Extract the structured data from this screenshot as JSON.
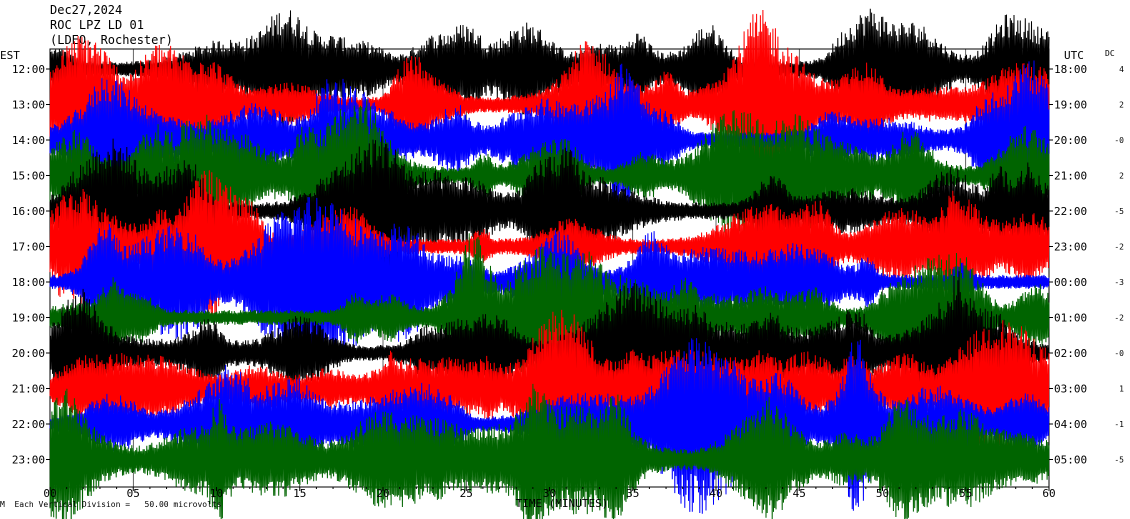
{
  "header": {
    "date": "Dec27,2024",
    "station": "ROC LPZ LD 01",
    "network": "(LDEO, Rochester)"
  },
  "left_axis_label": "EST",
  "right_axis_label": "UTC",
  "dc_label": "DC",
  "footer_note": "Each Vertical Division =   50.00 microvolts",
  "footer_mark": "M",
  "chart_data": {
    "type": "line",
    "xlabel": "TIME (MINUTES)",
    "xlim": [
      0,
      60
    ],
    "x_ticks": [
      "00",
      "05",
      "10",
      "15",
      "20",
      "25",
      "30",
      "35",
      "40",
      "45",
      "50",
      "55",
      "60"
    ],
    "trace_colors": [
      "#000000",
      "#ff0000",
      "#0000ff",
      "#006400"
    ],
    "series": [
      {
        "left_time": "12:00",
        "right_time": "18:00",
        "dc": "4",
        "color": "#000000",
        "amplitude": 0.6
      },
      {
        "left_time": "13:00",
        "right_time": "19:00",
        "dc": "2",
        "color": "#ff0000",
        "amplitude": 0.62
      },
      {
        "left_time": "14:00",
        "right_time": "20:00",
        "dc": "-0",
        "color": "#0000ff",
        "amplitude": 0.6
      },
      {
        "left_time": "15:00",
        "right_time": "21:00",
        "dc": "2",
        "color": "#006400",
        "amplitude": 0.66
      },
      {
        "left_time": "16:00",
        "right_time": "22:00",
        "dc": "-5",
        "color": "#000000",
        "amplitude": 0.68
      },
      {
        "left_time": "17:00",
        "right_time": "23:00",
        "dc": "-2",
        "color": "#ff0000",
        "amplitude": 0.62
      },
      {
        "left_time": "18:00",
        "right_time": "00:00",
        "dc": "-3",
        "color": "#0000ff",
        "amplitude": 0.58
      },
      {
        "left_time": "19:00",
        "right_time": "01:00",
        "dc": "-2",
        "color": "#006400",
        "amplitude": 0.6
      },
      {
        "left_time": "20:00",
        "right_time": "02:00",
        "dc": "-0",
        "color": "#000000",
        "amplitude": 0.56
      },
      {
        "left_time": "21:00",
        "right_time": "03:00",
        "dc": "1",
        "color": "#ff0000",
        "amplitude": 0.62
      },
      {
        "left_time": "22:00",
        "right_time": "04:00",
        "dc": "-1",
        "color": "#0000ff",
        "amplitude": 0.58
      },
      {
        "left_time": "23:00",
        "right_time": "05:00",
        "dc": "-5",
        "color": "#006400",
        "amplitude": 0.72
      }
    ]
  }
}
